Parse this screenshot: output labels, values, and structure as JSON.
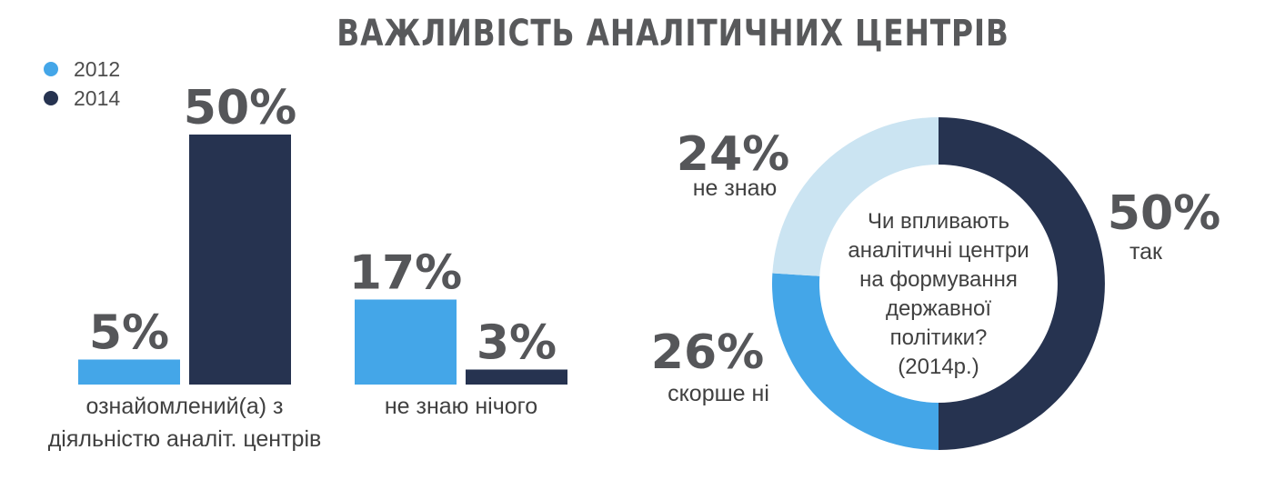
{
  "title": "ВАЖЛИВІСТЬ АНАЛІТИЧНИХ ЦЕНТРІВ",
  "chart_data": [
    {
      "type": "bar",
      "categories": [
        [
          "ознайомлений(а) з",
          "діяльністю аналіт. центрів"
        ],
        [
          "не знаю нічого"
        ]
      ],
      "series": [
        {
          "name": "2012",
          "values": [
            5,
            17
          ],
          "value_labels": [
            "5%",
            "17%"
          ],
          "color": "#44a6e8"
        },
        {
          "name": "2014",
          "values": [
            50,
            3
          ],
          "value_labels": [
            "50%",
            "3%"
          ],
          "color": "#263350"
        }
      ],
      "ylim": [
        0,
        50
      ],
      "legend_position": "top-left",
      "grid": false
    },
    {
      "type": "pie",
      "donut": true,
      "center_text": [
        "Чи впливають",
        "аналітичні центри",
        "на формування",
        "державної",
        "політики?",
        "(2014р.)"
      ],
      "slices": [
        {
          "label": "так",
          "value": 50,
          "value_label": "50%",
          "color": "#263350"
        },
        {
          "label": "скорше ні",
          "value": 26,
          "value_label": "26%",
          "color": "#44a6e8"
        },
        {
          "label": "не знаю",
          "value": 24,
          "value_label": "24%",
          "color": "#cbe4f2"
        }
      ]
    }
  ]
}
